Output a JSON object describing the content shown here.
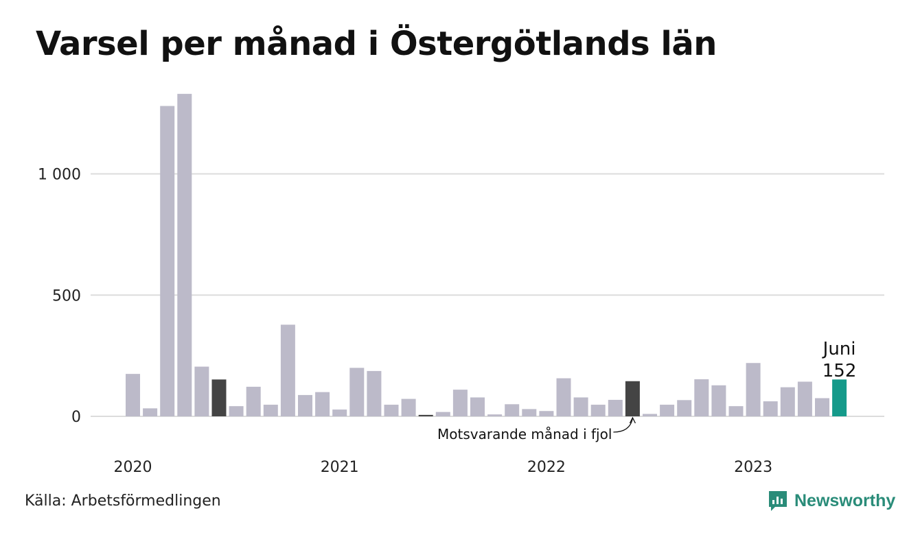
{
  "title": "Varsel per månad i Östergötlands län",
  "source": "Källa: Arbetsförmedlingen",
  "brand": "Newsworthy",
  "colors": {
    "bar": "#bcbac9",
    "comparison": "#444444",
    "highlight": "#159a8a",
    "brand": "#2a8c79"
  },
  "chart_data": {
    "type": "bar",
    "ylim": [
      0,
      1380
    ],
    "grid": true,
    "yticks": [
      {
        "value": 0,
        "label": "0"
      },
      {
        "value": 500,
        "label": "500"
      },
      {
        "value": 1000,
        "label": "1 000"
      }
    ],
    "xticks": [
      {
        "index": 0,
        "label": "2020"
      },
      {
        "index": 12,
        "label": "2021"
      },
      {
        "index": 24,
        "label": "2022"
      },
      {
        "index": 36,
        "label": "2023"
      }
    ],
    "values": [
      175,
      33,
      1280,
      1330,
      205,
      152,
      42,
      122,
      48,
      378,
      88,
      100,
      28,
      200,
      187,
      48,
      72,
      6,
      18,
      110,
      78,
      8,
      50,
      30,
      22,
      157,
      78,
      48,
      68,
      145,
      10,
      48,
      67,
      153,
      128,
      42,
      220,
      62,
      120,
      143,
      75,
      152
    ],
    "comparison_indices": [
      5,
      17,
      29
    ],
    "highlight_index": 41,
    "annotation": {
      "text": "Motsvarande månad i fjol",
      "index": 29
    },
    "highlight_label": {
      "month": "Juni",
      "value": "152"
    }
  }
}
